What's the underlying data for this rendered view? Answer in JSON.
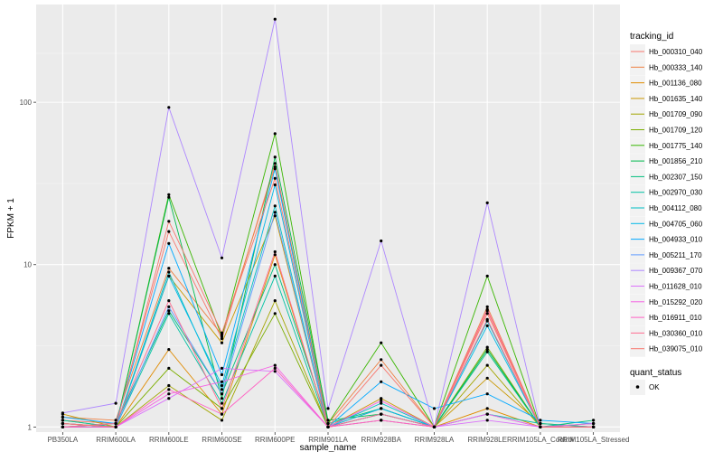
{
  "chart_data": {
    "type": "line",
    "xlabel": "sample_name",
    "ylabel": "FPKM + 1",
    "y_scale": "log",
    "ylim": [
      0.93,
      400
    ],
    "y_ticks": [
      1,
      10,
      100
    ],
    "y_tick_labels": [
      "1",
      "10",
      "100"
    ],
    "grid": true,
    "categories": [
      "PB350LA",
      "RRIM600LA",
      "RRIM600LE",
      "RRIM600SE",
      "RRIM600PE",
      "RRIM901LA",
      "RRIM928BA",
      "RRIM928LA",
      "RRIM928LE",
      "RRIM105LA_Control",
      "RRIM105LA_Stressed"
    ],
    "legend": {
      "title": "tracking_id",
      "position": "right"
    },
    "legend2": {
      "title": "quant_status",
      "items": [
        {
          "label": "OK",
          "marker": "point"
        }
      ]
    },
    "series": [
      {
        "name": "Hb_000310_040",
        "color": "#F8766D",
        "values": [
          1.1,
          1.05,
          16,
          3.5,
          42,
          1.0,
          1.3,
          1.0,
          5.0,
          1.0,
          1.0
        ]
      },
      {
        "name": "Hb_000333_140",
        "color": "#EE8043",
        "values": [
          1.15,
          1.1,
          9.5,
          3.7,
          40,
          1.05,
          2.6,
          1.0,
          5.5,
          1.0,
          1.0
        ]
      },
      {
        "name": "Hb_001136_080",
        "color": "#E08B00",
        "values": [
          1.05,
          1.0,
          3.0,
          1.2,
          11.5,
          1.0,
          1.2,
          1.0,
          1.3,
          1.0,
          1.0
        ]
      },
      {
        "name": "Hb_001635_140",
        "color": "#C99800",
        "values": [
          1.2,
          1.0,
          8.5,
          3.3,
          20,
          1.0,
          1.5,
          1.0,
          2.0,
          1.05,
          1.0
        ]
      },
      {
        "name": "Hb_001709_090",
        "color": "#A3A500",
        "values": [
          1.0,
          1.0,
          1.8,
          1.1,
          6.0,
          1.0,
          1.1,
          1.0,
          2.4,
          1.0,
          1.0
        ]
      },
      {
        "name": "Hb_001709_120",
        "color": "#7CAE00",
        "values": [
          1.1,
          1.0,
          2.3,
          1.3,
          5.0,
          1.0,
          1.2,
          1.0,
          3.1,
          1.0,
          1.0
        ]
      },
      {
        "name": "Hb_001775_140",
        "color": "#39B600",
        "values": [
          1.0,
          1.0,
          27,
          3.6,
          64,
          1.05,
          3.3,
          1.0,
          8.5,
          1.0,
          1.0
        ]
      },
      {
        "name": "Hb_001856_210",
        "color": "#00BB4E",
        "values": [
          1.05,
          1.0,
          26,
          1.5,
          46,
          1.1,
          1.2,
          1.0,
          3.0,
          1.0,
          1.05
        ]
      },
      {
        "name": "Hb_002307_150",
        "color": "#00BF7D",
        "values": [
          1.0,
          1.05,
          5.2,
          1.6,
          10,
          1.05,
          1.3,
          1.0,
          2.9,
          1.0,
          1.1
        ]
      },
      {
        "name": "Hb_002970_030",
        "color": "#00C1A3",
        "values": [
          1.1,
          1.0,
          5.0,
          1.4,
          8.5,
          1.0,
          1.2,
          1.0,
          1.2,
          1.05,
          1.0
        ]
      },
      {
        "name": "Hb_004112_080",
        "color": "#00BFC4",
        "values": [
          1.0,
          1.0,
          9.0,
          1.7,
          23,
          1.0,
          1.4,
          1.0,
          4.5,
          1.0,
          1.0
        ]
      },
      {
        "name": "Hb_004705_060",
        "color": "#00B8E7",
        "values": [
          1.05,
          1.0,
          8.5,
          1.8,
          31,
          1.0,
          1.3,
          1.0,
          4.2,
          1.0,
          1.0
        ]
      },
      {
        "name": "Hb_004933_010",
        "color": "#00A9FF",
        "values": [
          1.15,
          1.05,
          13.5,
          2.1,
          39,
          1.0,
          1.9,
          1.3,
          1.6,
          1.1,
          1.05
        ]
      },
      {
        "name": "Hb_005211_170",
        "color": "#619CFF",
        "values": [
          1.0,
          1.0,
          5.5,
          1.6,
          21,
          1.0,
          1.2,
          1.0,
          1.2,
          1.0,
          1.0
        ]
      },
      {
        "name": "Hb_009367_070",
        "color": "#AE87FF",
        "values": [
          1.22,
          1.4,
          93,
          11,
          325,
          1.3,
          14,
          1.0,
          24,
          1.0,
          1.0
        ]
      },
      {
        "name": "Hb_011628_010",
        "color": "#DB72FB",
        "values": [
          1.0,
          1.0,
          1.5,
          2.3,
          2.2,
          1.0,
          1.1,
          1.0,
          1.1,
          1.0,
          1.0
        ]
      },
      {
        "name": "Hb_015292_020",
        "color": "#F564E3",
        "values": [
          1.05,
          1.0,
          1.6,
          1.9,
          2.4,
          1.0,
          1.45,
          1.0,
          1.2,
          1.0,
          1.05
        ]
      },
      {
        "name": "Hb_016911_010",
        "color": "#FF61C3",
        "values": [
          1.0,
          1.0,
          1.7,
          1.2,
          2.3,
          1.0,
          1.1,
          1.0,
          5.3,
          1.0,
          1.0
        ]
      },
      {
        "name": "Hb_030360_010",
        "color": "#FF6C91",
        "values": [
          1.0,
          1.05,
          6.0,
          1.3,
          12,
          1.0,
          1.2,
          1.0,
          4.6,
          1.0,
          1.0
        ]
      },
      {
        "name": "Hb_039075_010",
        "color": "#F8766D",
        "values": [
          1.05,
          1.0,
          18.5,
          3.8,
          34,
          1.0,
          2.4,
          1.0,
          5.2,
          1.0,
          1.0
        ]
      }
    ]
  }
}
